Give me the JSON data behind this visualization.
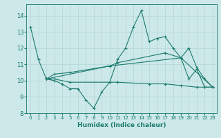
{
  "xlabel": "Humidex (Indice chaleur)",
  "xlim": [
    -0.5,
    23.5
  ],
  "ylim": [
    8,
    14.7
  ],
  "yticks": [
    8,
    9,
    10,
    11,
    12,
    13,
    14
  ],
  "xticks": [
    0,
    1,
    2,
    3,
    4,
    5,
    6,
    7,
    8,
    9,
    10,
    11,
    12,
    13,
    14,
    15,
    16,
    17,
    18,
    19,
    20,
    21,
    22,
    23
  ],
  "bg_color": "#cce8e8",
  "grid_color": "#b8d8d8",
  "line_color": "#1a7a6e",
  "lines": [
    {
      "x": [
        0,
        1,
        2,
        3,
        4,
        5,
        6,
        7,
        8,
        9,
        10,
        11,
        12,
        13,
        14,
        15,
        16,
        17,
        18,
        19,
        20,
        21,
        22,
        23
      ],
      "y": [
        13.3,
        11.3,
        10.1,
        10.0,
        9.8,
        9.5,
        9.5,
        8.8,
        8.3,
        9.3,
        9.9,
        11.3,
        12.0,
        13.3,
        14.3,
        12.4,
        12.6,
        12.7,
        12.0,
        11.4,
        10.1,
        10.7,
        9.6,
        9.6
      ],
      "marker": "+"
    },
    {
      "x": [
        2,
        3,
        5,
        10,
        11,
        17,
        19,
        20,
        21,
        22,
        23
      ],
      "y": [
        10.1,
        10.4,
        10.5,
        10.9,
        11.1,
        11.7,
        11.4,
        12.0,
        10.8,
        10.1,
        9.6
      ],
      "marker": "+"
    },
    {
      "x": [
        2,
        3,
        5,
        10,
        11,
        15,
        17,
        19,
        21,
        22,
        23
      ],
      "y": [
        10.1,
        10.1,
        9.9,
        9.9,
        9.9,
        9.8,
        9.8,
        9.7,
        9.6,
        9.6,
        9.6
      ],
      "marker": "+"
    },
    {
      "x": [
        2,
        10,
        19,
        23
      ],
      "y": [
        10.1,
        10.9,
        11.4,
        9.6
      ],
      "marker": "+"
    }
  ]
}
